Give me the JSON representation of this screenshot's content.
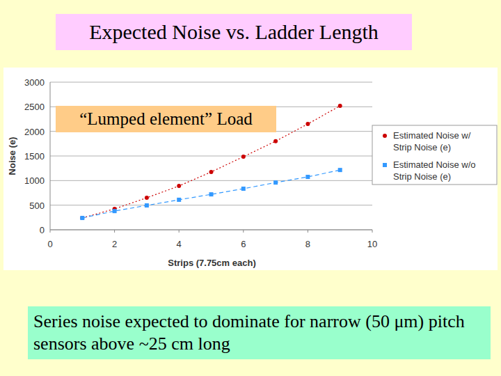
{
  "chart_data": {
    "type": "line",
    "title": "Expected Noise vs. Ladder Length",
    "annotations": [
      "“Lumped element” Load",
      "Series noise expected to dominate for narrow (50 μm) pitch sensors above ~25 cm long"
    ],
    "x_label": "Strips (7.75cm each)",
    "y_label": "Noise (e)",
    "x": [
      1,
      2,
      3,
      4,
      5,
      6,
      7,
      8,
      9
    ],
    "series": [
      {
        "name": "Estimated Noise w/ Strip Noise (e)",
        "color": "#cc0000",
        "marker": "circle",
        "line_style": "dotted",
        "values": [
          240,
          425,
          650,
          890,
          1175,
          1485,
          1800,
          2150,
          2520
        ]
      },
      {
        "name": "Estimated Noise w/o Strip Noise (e)",
        "color": "#3399ff",
        "marker": "square",
        "line_style": "dashed",
        "values": [
          240,
          380,
          495,
          610,
          720,
          835,
          960,
          1075,
          1215
        ]
      }
    ],
    "xlim": [
      0,
      10
    ],
    "xticks": [
      0,
      2,
      4,
      6,
      8,
      10
    ],
    "ylim": [
      0,
      3000
    ],
    "yticks": [
      0,
      500,
      1000,
      1500,
      2000,
      2500,
      3000
    ],
    "grid": true,
    "legend": "right"
  }
}
